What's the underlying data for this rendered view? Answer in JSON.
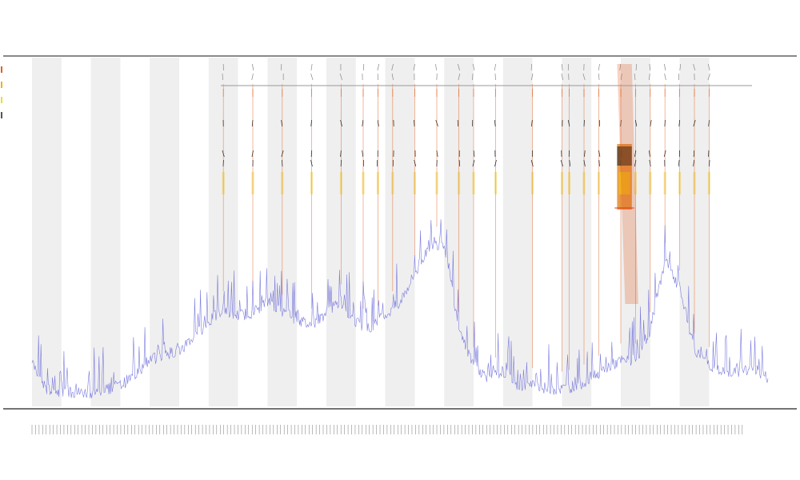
{
  "chart_data": {
    "type": "line",
    "title": "",
    "subtitle_lines": [
      "",
      ""
    ],
    "xlabel": "",
    "ylabel": "",
    "legend_position": "left",
    "grid": false,
    "alternating_band_color": "#efefef",
    "line_color": "#6f6fdc",
    "legend": [
      {
        "name": "",
        "color": "#e06020"
      },
      {
        "name": "",
        "color": "#f0b020"
      },
      {
        "name": "",
        "color": "#e8e030"
      },
      {
        "name": "",
        "color": "#555555"
      }
    ],
    "track_labels": [
      "",
      ""
    ],
    "series": [
      {
        "name": "",
        "type": "line",
        "color": "#6f6fdc",
        "x": [
          0,
          2,
          4,
          6,
          8,
          10,
          12,
          14,
          16,
          18,
          20,
          22,
          24,
          26,
          28,
          30,
          32,
          34,
          36,
          38,
          40,
          42,
          44,
          46,
          48,
          50,
          52,
          54,
          56,
          58,
          60,
          62,
          64,
          66,
          68,
          70,
          72,
          74,
          76,
          78,
          80,
          82,
          84,
          86,
          88,
          90,
          92,
          94,
          96,
          98,
          100
        ],
        "y": [
          0.12,
          0.05,
          0.04,
          0.04,
          0.04,
          0.05,
          0.06,
          0.09,
          0.13,
          0.15,
          0.16,
          0.2,
          0.24,
          0.28,
          0.26,
          0.27,
          0.3,
          0.27,
          0.25,
          0.23,
          0.27,
          0.3,
          0.24,
          0.22,
          0.26,
          0.3,
          0.38,
          0.46,
          0.47,
          0.22,
          0.12,
          0.08,
          0.1,
          0.06,
          0.06,
          0.05,
          0.05,
          0.06,
          0.08,
          0.11,
          0.13,
          0.13,
          0.22,
          0.42,
          0.34,
          0.16,
          0.12,
          0.09,
          0.1,
          0.11,
          0.08
        ]
      }
    ],
    "overlay_spikes": {
      "x": [
        26,
        30,
        34,
        38,
        42,
        45,
        47,
        49,
        52,
        55,
        58,
        60,
        63,
        68,
        72,
        73,
        75,
        77,
        80,
        82,
        84,
        86,
        88,
        90,
        92
      ],
      "color_top": "#e06020",
      "color_mid": "#f0c020"
    },
    "hotspot_range": [
      79.5,
      81.5
    ],
    "xlim": [
      0,
      100
    ],
    "ylim": [
      0,
      1
    ],
    "shaded_bands": [
      [
        0,
        4
      ],
      [
        8,
        12
      ],
      [
        16,
        20
      ],
      [
        24,
        28
      ],
      [
        32,
        36
      ],
      [
        40,
        44
      ],
      [
        48,
        52
      ],
      [
        56,
        60
      ],
      [
        64,
        68
      ],
      [
        72,
        76
      ],
      [
        80,
        84
      ],
      [
        88,
        92
      ]
    ]
  }
}
